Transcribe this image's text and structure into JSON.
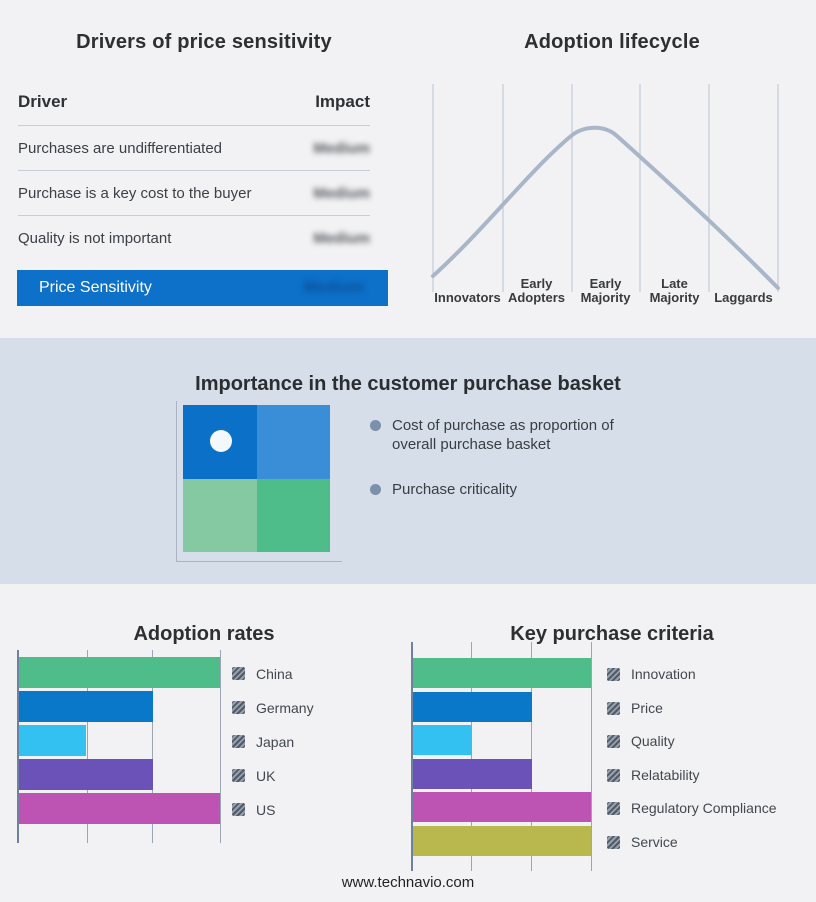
{
  "page": {
    "footer_text": "www.technavio.com",
    "background": "#f2f2f4",
    "band_background": "#d5dee9"
  },
  "chart_data": [
    {
      "type": "table",
      "title": "Drivers of price sensitivity",
      "columns": [
        "Driver",
        "Impact"
      ],
      "rows": [
        [
          "Purchases are undifferentiated",
          "Medium"
        ],
        [
          "Purchase is a key cost to the buyer",
          "Medium"
        ],
        [
          "Quality is not important",
          "Medium"
        ]
      ],
      "highlight_row": {
        "label": "Price Sensitivity",
        "value": "Medium"
      },
      "highlight_color": "#0d70c9",
      "impact_values_blurred": true
    },
    {
      "type": "line",
      "title": "Adoption lifecycle",
      "categories": [
        "Innovators",
        "Early Adopters",
        "Early Majority",
        "Late Majority",
        "Laggards"
      ],
      "peak_stage": "Early Majority",
      "curve_color": "#a9b6c8",
      "gridlines": true
    },
    {
      "type": "heatmap",
      "title": "Importance in the customer purchase basket",
      "grid": [
        2,
        2
      ],
      "cell_colors": [
        [
          "#0b70c7",
          "#3a8ed8"
        ],
        [
          "#85c9a3",
          "#4fbd8a"
        ]
      ],
      "marker": {
        "row": 0,
        "col": 0,
        "shape": "white-dot"
      },
      "notes": [
        "Cost of purchase as proportion of overall purchase basket",
        "Purchase criticality"
      ]
    },
    {
      "type": "bar",
      "title": "Adoption rates",
      "orientation": "horizontal",
      "categories": [
        "China",
        "Germany",
        "Japan",
        "UK",
        "US"
      ],
      "values": [
        3,
        2,
        1,
        2,
        3
      ],
      "xlim": [
        0,
        3
      ],
      "gridlines": true,
      "legend_position": "right",
      "colors": [
        "#4fbd8a",
        "#0a78c9",
        "#33c1f1",
        "#6b52b8",
        "#bd54b4"
      ]
    },
    {
      "type": "bar",
      "title": "Key purchase criteria",
      "orientation": "horizontal",
      "categories": [
        "Innovation",
        "Price",
        "Quality",
        "Relatability",
        "Regulatory Compliance",
        "Service"
      ],
      "values": [
        3,
        2,
        1,
        2,
        3,
        3
      ],
      "xlim": [
        0,
        3
      ],
      "gridlines": true,
      "legend_position": "right",
      "colors": [
        "#4fbd8a",
        "#0a78c9",
        "#33c1f1",
        "#6b52b8",
        "#bd54b4",
        "#b8b84f"
      ]
    }
  ]
}
